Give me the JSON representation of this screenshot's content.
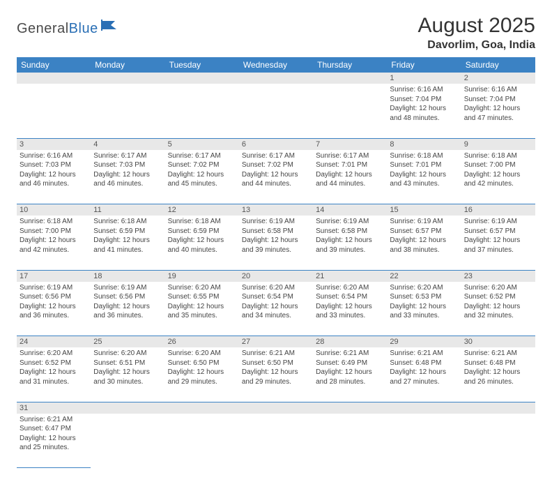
{
  "logo": {
    "general": "General",
    "blue": "Blue"
  },
  "title": "August 2025",
  "location": "Davorlim, Goa, India",
  "colors": {
    "header_bg": "#3b82c4",
    "header_text": "#ffffff",
    "daynum_bg": "#e8e8e8",
    "row_border": "#3b82c4",
    "body_text": "#444444",
    "logo_gray": "#4a4a4a",
    "logo_blue": "#2a6fb5"
  },
  "weekdays": [
    "Sunday",
    "Monday",
    "Tuesday",
    "Wednesday",
    "Thursday",
    "Friday",
    "Saturday"
  ],
  "weeks": [
    [
      null,
      null,
      null,
      null,
      null,
      {
        "n": "1",
        "sunrise": "6:16 AM",
        "sunset": "7:04 PM",
        "daylight": "12 hours and 48 minutes."
      },
      {
        "n": "2",
        "sunrise": "6:16 AM",
        "sunset": "7:04 PM",
        "daylight": "12 hours and 47 minutes."
      }
    ],
    [
      {
        "n": "3",
        "sunrise": "6:16 AM",
        "sunset": "7:03 PM",
        "daylight": "12 hours and 46 minutes."
      },
      {
        "n": "4",
        "sunrise": "6:17 AM",
        "sunset": "7:03 PM",
        "daylight": "12 hours and 46 minutes."
      },
      {
        "n": "5",
        "sunrise": "6:17 AM",
        "sunset": "7:02 PM",
        "daylight": "12 hours and 45 minutes."
      },
      {
        "n": "6",
        "sunrise": "6:17 AM",
        "sunset": "7:02 PM",
        "daylight": "12 hours and 44 minutes."
      },
      {
        "n": "7",
        "sunrise": "6:17 AM",
        "sunset": "7:01 PM",
        "daylight": "12 hours and 44 minutes."
      },
      {
        "n": "8",
        "sunrise": "6:18 AM",
        "sunset": "7:01 PM",
        "daylight": "12 hours and 43 minutes."
      },
      {
        "n": "9",
        "sunrise": "6:18 AM",
        "sunset": "7:00 PM",
        "daylight": "12 hours and 42 minutes."
      }
    ],
    [
      {
        "n": "10",
        "sunrise": "6:18 AM",
        "sunset": "7:00 PM",
        "daylight": "12 hours and 42 minutes."
      },
      {
        "n": "11",
        "sunrise": "6:18 AM",
        "sunset": "6:59 PM",
        "daylight": "12 hours and 41 minutes."
      },
      {
        "n": "12",
        "sunrise": "6:18 AM",
        "sunset": "6:59 PM",
        "daylight": "12 hours and 40 minutes."
      },
      {
        "n": "13",
        "sunrise": "6:19 AM",
        "sunset": "6:58 PM",
        "daylight": "12 hours and 39 minutes."
      },
      {
        "n": "14",
        "sunrise": "6:19 AM",
        "sunset": "6:58 PM",
        "daylight": "12 hours and 39 minutes."
      },
      {
        "n": "15",
        "sunrise": "6:19 AM",
        "sunset": "6:57 PM",
        "daylight": "12 hours and 38 minutes."
      },
      {
        "n": "16",
        "sunrise": "6:19 AM",
        "sunset": "6:57 PM",
        "daylight": "12 hours and 37 minutes."
      }
    ],
    [
      {
        "n": "17",
        "sunrise": "6:19 AM",
        "sunset": "6:56 PM",
        "daylight": "12 hours and 36 minutes."
      },
      {
        "n": "18",
        "sunrise": "6:19 AM",
        "sunset": "6:56 PM",
        "daylight": "12 hours and 36 minutes."
      },
      {
        "n": "19",
        "sunrise": "6:20 AM",
        "sunset": "6:55 PM",
        "daylight": "12 hours and 35 minutes."
      },
      {
        "n": "20",
        "sunrise": "6:20 AM",
        "sunset": "6:54 PM",
        "daylight": "12 hours and 34 minutes."
      },
      {
        "n": "21",
        "sunrise": "6:20 AM",
        "sunset": "6:54 PM",
        "daylight": "12 hours and 33 minutes."
      },
      {
        "n": "22",
        "sunrise": "6:20 AM",
        "sunset": "6:53 PM",
        "daylight": "12 hours and 33 minutes."
      },
      {
        "n": "23",
        "sunrise": "6:20 AM",
        "sunset": "6:52 PM",
        "daylight": "12 hours and 32 minutes."
      }
    ],
    [
      {
        "n": "24",
        "sunrise": "6:20 AM",
        "sunset": "6:52 PM",
        "daylight": "12 hours and 31 minutes."
      },
      {
        "n": "25",
        "sunrise": "6:20 AM",
        "sunset": "6:51 PM",
        "daylight": "12 hours and 30 minutes."
      },
      {
        "n": "26",
        "sunrise": "6:20 AM",
        "sunset": "6:50 PM",
        "daylight": "12 hours and 29 minutes."
      },
      {
        "n": "27",
        "sunrise": "6:21 AM",
        "sunset": "6:50 PM",
        "daylight": "12 hours and 29 minutes."
      },
      {
        "n": "28",
        "sunrise": "6:21 AM",
        "sunset": "6:49 PM",
        "daylight": "12 hours and 28 minutes."
      },
      {
        "n": "29",
        "sunrise": "6:21 AM",
        "sunset": "6:48 PM",
        "daylight": "12 hours and 27 minutes."
      },
      {
        "n": "30",
        "sunrise": "6:21 AM",
        "sunset": "6:48 PM",
        "daylight": "12 hours and 26 minutes."
      }
    ],
    [
      {
        "n": "31",
        "sunrise": "6:21 AM",
        "sunset": "6:47 PM",
        "daylight": "12 hours and 25 minutes."
      },
      null,
      null,
      null,
      null,
      null,
      null
    ]
  ],
  "labels": {
    "sunrise": "Sunrise:",
    "sunset": "Sunset:",
    "daylight": "Daylight:"
  }
}
